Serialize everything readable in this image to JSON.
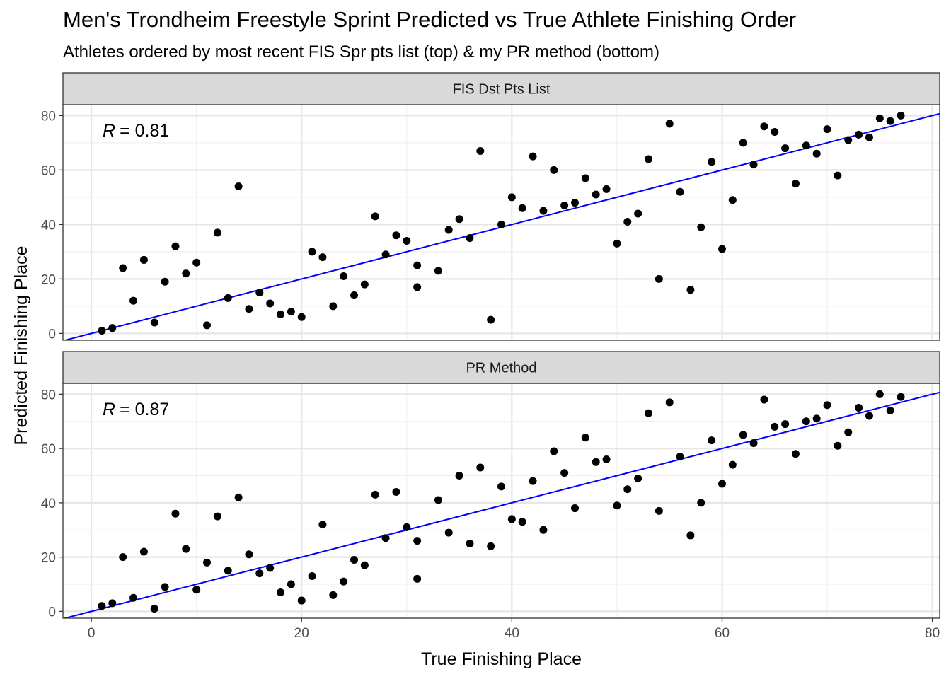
{
  "chart_data": {
    "type": "scatter",
    "title": "Men's Trondheim Freestyle Sprint Predicted vs True Athlete Finishing Order",
    "subtitle": "Athletes ordered by most recent FIS Spr pts list (top) & my PR method (bottom)",
    "xlabel": "True Finishing Place",
    "ylabel": "Predicted Finishing Place",
    "xlim": [
      -2.7,
      80.7
    ],
    "ylim": [
      -2.5,
      84
    ],
    "x_ticks": [
      0,
      20,
      40,
      60,
      80
    ],
    "y_ticks": [
      0,
      20,
      40,
      60,
      80
    ],
    "grid": true,
    "fit_line": {
      "slope": 1,
      "intercept": 0,
      "color": "#0000ff"
    },
    "panels": [
      {
        "strip": "FIS Dst Pts List",
        "r_label": "= 0.81",
        "points": [
          [
            1,
            1
          ],
          [
            2,
            2
          ],
          [
            3,
            24
          ],
          [
            4,
            12
          ],
          [
            5,
            27
          ],
          [
            6,
            4
          ],
          [
            7,
            19
          ],
          [
            8,
            32
          ],
          [
            9,
            22
          ],
          [
            10,
            26
          ],
          [
            11,
            3
          ],
          [
            12,
            37
          ],
          [
            13,
            13
          ],
          [
            14,
            54
          ],
          [
            15,
            9
          ],
          [
            16,
            15
          ],
          [
            17,
            11
          ],
          [
            18,
            7
          ],
          [
            19,
            8
          ],
          [
            20,
            6
          ],
          [
            21,
            30
          ],
          [
            22,
            28
          ],
          [
            23,
            10
          ],
          [
            24,
            21
          ],
          [
            25,
            14
          ],
          [
            26,
            18
          ],
          [
            27,
            43
          ],
          [
            28,
            29
          ],
          [
            29,
            36
          ],
          [
            30,
            34
          ],
          [
            31,
            25
          ],
          [
            31,
            17
          ],
          [
            33,
            23
          ],
          [
            34,
            38
          ],
          [
            35,
            42
          ],
          [
            36,
            35
          ],
          [
            37,
            67
          ],
          [
            38,
            5
          ],
          [
            39,
            40
          ],
          [
            40,
            50
          ],
          [
            41,
            46
          ],
          [
            42,
            65
          ],
          [
            43,
            45
          ],
          [
            44,
            60
          ],
          [
            45,
            47
          ],
          [
            46,
            48
          ],
          [
            47,
            57
          ],
          [
            48,
            51
          ],
          [
            49,
            53
          ],
          [
            50,
            33
          ],
          [
            51,
            41
          ],
          [
            52,
            44
          ],
          [
            53,
            64
          ],
          [
            54,
            20
          ],
          [
            55,
            77
          ],
          [
            56,
            52
          ],
          [
            57,
            16
          ],
          [
            58,
            39
          ],
          [
            59,
            63
          ],
          [
            60,
            31
          ],
          [
            61,
            49
          ],
          [
            62,
            70
          ],
          [
            63,
            62
          ],
          [
            64,
            76
          ],
          [
            65,
            74
          ],
          [
            66,
            68
          ],
          [
            67,
            55
          ],
          [
            68,
            69
          ],
          [
            69,
            66
          ],
          [
            70,
            75
          ],
          [
            71,
            58
          ],
          [
            72,
            71
          ],
          [
            73,
            73
          ],
          [
            74,
            72
          ],
          [
            75,
            79
          ],
          [
            76,
            78
          ],
          [
            77,
            80
          ]
        ]
      },
      {
        "strip": "PR Method",
        "r_label": "= 0.87",
        "points": [
          [
            1,
            2
          ],
          [
            2,
            3
          ],
          [
            3,
            20
          ],
          [
            4,
            5
          ],
          [
            5,
            22
          ],
          [
            6,
            1
          ],
          [
            7,
            9
          ],
          [
            8,
            36
          ],
          [
            9,
            23
          ],
          [
            10,
            8
          ],
          [
            11,
            18
          ],
          [
            12,
            35
          ],
          [
            13,
            15
          ],
          [
            14,
            42
          ],
          [
            15,
            21
          ],
          [
            16,
            14
          ],
          [
            17,
            16
          ],
          [
            18,
            7
          ],
          [
            19,
            10
          ],
          [
            20,
            4
          ],
          [
            21,
            13
          ],
          [
            22,
            32
          ],
          [
            23,
            6
          ],
          [
            24,
            11
          ],
          [
            25,
            19
          ],
          [
            26,
            17
          ],
          [
            27,
            43
          ],
          [
            28,
            27
          ],
          [
            29,
            44
          ],
          [
            30,
            31
          ],
          [
            31,
            26
          ],
          [
            31,
            12
          ],
          [
            33,
            41
          ],
          [
            34,
            29
          ],
          [
            35,
            50
          ],
          [
            36,
            25
          ],
          [
            37,
            53
          ],
          [
            38,
            24
          ],
          [
            39,
            46
          ],
          [
            40,
            34
          ],
          [
            41,
            33
          ],
          [
            42,
            48
          ],
          [
            43,
            30
          ],
          [
            44,
            59
          ],
          [
            45,
            51
          ],
          [
            46,
            38
          ],
          [
            47,
            64
          ],
          [
            48,
            55
          ],
          [
            49,
            56
          ],
          [
            50,
            39
          ],
          [
            51,
            45
          ],
          [
            52,
            49
          ],
          [
            53,
            73
          ],
          [
            54,
            37
          ],
          [
            55,
            77
          ],
          [
            56,
            57
          ],
          [
            57,
            28
          ],
          [
            58,
            40
          ],
          [
            59,
            63
          ],
          [
            60,
            47
          ],
          [
            61,
            54
          ],
          [
            62,
            65
          ],
          [
            63,
            62
          ],
          [
            64,
            78
          ],
          [
            65,
            68
          ],
          [
            66,
            69
          ],
          [
            67,
            58
          ],
          [
            68,
            70
          ],
          [
            69,
            71
          ],
          [
            70,
            76
          ],
          [
            71,
            61
          ],
          [
            72,
            66
          ],
          [
            73,
            75
          ],
          [
            74,
            72
          ],
          [
            75,
            80
          ],
          [
            76,
            74
          ],
          [
            77,
            79
          ]
        ]
      }
    ]
  }
}
